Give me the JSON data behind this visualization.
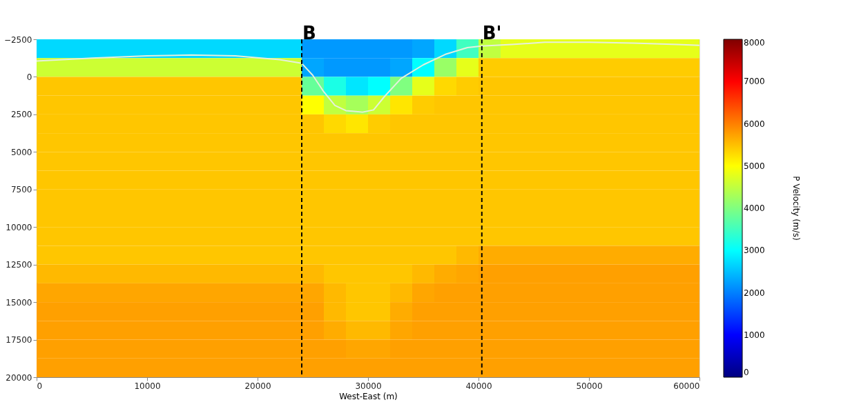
{
  "chart_data": {
    "type": "heatmap",
    "xlabel": "West-East (m)",
    "clabel": "P Velocity (m/s)",
    "x": [
      1000,
      3000,
      5000,
      7000,
      9000,
      11000,
      13000,
      15000,
      17000,
      19000,
      21000,
      23000,
      25000,
      27000,
      29000,
      31000,
      33000,
      35000,
      37000,
      39000,
      41000,
      43000,
      45000,
      47000,
      49000,
      51000,
      53000,
      55000,
      57000,
      59000
    ],
    "y": [
      -1875,
      -625,
      625,
      1875,
      3125,
      4375,
      5625,
      6875,
      8125,
      9375,
      10625,
      11875,
      13125,
      14375,
      15625,
      16875,
      18125,
      19375
    ],
    "cells": [
      [
        2700,
        2700,
        2700,
        2700,
        2700,
        2700,
        2700,
        2700,
        2700,
        2700,
        2700,
        2700,
        2200,
        2200,
        2200,
        2200,
        2200,
        2300,
        2700,
        3500,
        4500,
        4800,
        4800,
        4800,
        4800,
        4800,
        4800,
        4800,
        4800,
        4800
      ],
      [
        4600,
        4600,
        4600,
        4600,
        4600,
        4600,
        4600,
        4600,
        4600,
        4600,
        4600,
        4600,
        2300,
        2200,
        2200,
        2200,
        2300,
        3000,
        4200,
        4800,
        5400,
        5400,
        5400,
        5400,
        5400,
        5400,
        5400,
        5400,
        5400,
        5400
      ],
      [
        5450,
        5450,
        5450,
        5450,
        5450,
        5450,
        5450,
        5450,
        5450,
        5450,
        5450,
        5450,
        3800,
        3200,
        2800,
        3000,
        4000,
        4800,
        5300,
        5400,
        5450,
        5450,
        5450,
        5450,
        5450,
        5450,
        5450,
        5450,
        5450,
        5450
      ],
      [
        5450,
        5450,
        5450,
        5450,
        5450,
        5450,
        5450,
        5450,
        5450,
        5450,
        5450,
        5450,
        5000,
        4500,
        4300,
        4600,
        5200,
        5400,
        5450,
        5450,
        5450,
        5450,
        5450,
        5450,
        5450,
        5450,
        5450,
        5450,
        5450,
        5450
      ],
      [
        5450,
        5450,
        5450,
        5450,
        5450,
        5450,
        5450,
        5450,
        5450,
        5450,
        5450,
        5450,
        5450,
        5300,
        5200,
        5400,
        5450,
        5450,
        5450,
        5450,
        5450,
        5450,
        5450,
        5450,
        5450,
        5450,
        5450,
        5450,
        5450,
        5450
      ],
      [
        5450,
        5450,
        5450,
        5450,
        5450,
        5450,
        5450,
        5450,
        5450,
        5450,
        5450,
        5450,
        5450,
        5450,
        5450,
        5450,
        5450,
        5450,
        5450,
        5450,
        5450,
        5450,
        5450,
        5450,
        5450,
        5450,
        5450,
        5450,
        5450,
        5450
      ],
      [
        5450,
        5450,
        5450,
        5450,
        5450,
        5450,
        5450,
        5450,
        5450,
        5450,
        5450,
        5450,
        5450,
        5450,
        5450,
        5450,
        5450,
        5450,
        5450,
        5450,
        5450,
        5450,
        5450,
        5450,
        5450,
        5450,
        5450,
        5450,
        5450,
        5450
      ],
      [
        5450,
        5450,
        5450,
        5450,
        5450,
        5450,
        5450,
        5450,
        5450,
        5450,
        5450,
        5450,
        5450,
        5450,
        5450,
        5450,
        5450,
        5450,
        5450,
        5450,
        5450,
        5450,
        5450,
        5450,
        5450,
        5450,
        5450,
        5450,
        5450,
        5450
      ],
      [
        5450,
        5450,
        5450,
        5450,
        5450,
        5450,
        5450,
        5450,
        5450,
        5450,
        5450,
        5450,
        5450,
        5450,
        5450,
        5450,
        5450,
        5450,
        5450,
        5450,
        5450,
        5450,
        5450,
        5450,
        5450,
        5450,
        5450,
        5450,
        5450,
        5450
      ],
      [
        5450,
        5450,
        5450,
        5450,
        5450,
        5450,
        5450,
        5450,
        5450,
        5450,
        5450,
        5450,
        5450,
        5450,
        5450,
        5450,
        5450,
        5450,
        5450,
        5450,
        5450,
        5450,
        5450,
        5450,
        5450,
        5450,
        5450,
        5450,
        5450,
        5450
      ],
      [
        5450,
        5450,
        5450,
        5450,
        5450,
        5450,
        5450,
        5450,
        5450,
        5450,
        5450,
        5450,
        5450,
        5450,
        5450,
        5450,
        5450,
        5450,
        5450,
        5450,
        5450,
        5450,
        5450,
        5450,
        5450,
        5450,
        5450,
        5450,
        5450,
        5450
      ],
      [
        5450,
        5450,
        5450,
        5450,
        5450,
        5450,
        5450,
        5450,
        5450,
        5450,
        5450,
        5450,
        5450,
        5450,
        5450,
        5450,
        5450,
        5450,
        5450,
        5550,
        5650,
        5650,
        5650,
        5650,
        5650,
        5650,
        5650,
        5650,
        5650,
        5650
      ],
      [
        5550,
        5550,
        5550,
        5550,
        5550,
        5550,
        5550,
        5550,
        5550,
        5550,
        5550,
        5550,
        5550,
        5450,
        5450,
        5450,
        5450,
        5550,
        5650,
        5700,
        5750,
        5750,
        5750,
        5750,
        5750,
        5750,
        5750,
        5750,
        5750,
        5750
      ],
      [
        5700,
        5700,
        5700,
        5700,
        5700,
        5700,
        5700,
        5700,
        5700,
        5700,
        5700,
        5700,
        5700,
        5550,
        5450,
        5450,
        5550,
        5700,
        5750,
        5750,
        5750,
        5750,
        5750,
        5750,
        5750,
        5750,
        5750,
        5750,
        5750,
        5750
      ],
      [
        5750,
        5750,
        5750,
        5750,
        5750,
        5750,
        5750,
        5750,
        5750,
        5750,
        5750,
        5750,
        5750,
        5550,
        5450,
        5450,
        5650,
        5750,
        5750,
        5750,
        5750,
        5750,
        5750,
        5750,
        5750,
        5750,
        5750,
        5750,
        5750,
        5750
      ],
      [
        5750,
        5750,
        5750,
        5750,
        5750,
        5750,
        5750,
        5750,
        5750,
        5750,
        5750,
        5750,
        5750,
        5650,
        5550,
        5550,
        5700,
        5750,
        5750,
        5750,
        5750,
        5750,
        5750,
        5750,
        5750,
        5750,
        5750,
        5750,
        5750,
        5750
      ],
      [
        5750,
        5750,
        5750,
        5750,
        5750,
        5750,
        5750,
        5750,
        5750,
        5750,
        5750,
        5750,
        5750,
        5750,
        5700,
        5700,
        5750,
        5750,
        5750,
        5750,
        5750,
        5750,
        5750,
        5750,
        5750,
        5750,
        5750,
        5750,
        5750,
        5750
      ],
      [
        5750,
        5750,
        5750,
        5750,
        5750,
        5750,
        5750,
        5750,
        5750,
        5750,
        5750,
        5750,
        5750,
        5750,
        5750,
        5750,
        5750,
        5750,
        5750,
        5750,
        5750,
        5750,
        5750,
        5750,
        5750,
        5750,
        5750,
        5750,
        5750,
        5750
      ]
    ],
    "series": [
      {
        "type": "line",
        "color": "#e6f0dc",
        "x": [
          0,
          5000,
          10000,
          14000,
          18000,
          22000,
          24000,
          25000,
          26000,
          27000,
          28000,
          29500,
          30500,
          31500,
          33000,
          35000,
          37000,
          39000,
          40300,
          43000,
          46000,
          50000,
          54000,
          58000,
          60000
        ],
        "values": [
          -1050,
          -1250,
          -1400,
          -1450,
          -1400,
          -1150,
          -900,
          -100,
          1000,
          1900,
          2250,
          2350,
          2200,
          1300,
          100,
          -800,
          -1500,
          -1950,
          -2050,
          -2150,
          -2300,
          -2300,
          -2250,
          -2150,
          -2100
        ]
      }
    ],
    "ref_lines": [
      {
        "axis": "x",
        "value": 24000,
        "label": "B",
        "color": "#000000",
        "line_style": "dashed"
      },
      {
        "axis": "x",
        "value": 40300,
        "label": "B'",
        "color": "#000000",
        "line_style": "dashed"
      }
    ],
    "xlim": [
      0,
      60000
    ],
    "xticks": [
      0,
      10000,
      20000,
      30000,
      40000,
      50000,
      60000
    ],
    "ylim": [
      20000,
      -2500
    ],
    "yticks": [
      {
        "value": -2500,
        "label": "−2500"
      },
      0,
      2500,
      5000,
      7500,
      10000,
      12500,
      15000,
      17500,
      20000
    ],
    "clim": [
      0,
      8000
    ],
    "cticks": [
      0,
      1000,
      2000,
      3000,
      4000,
      5000,
      6000,
      7000,
      8000
    ],
    "grid": false,
    "legend": "right"
  }
}
